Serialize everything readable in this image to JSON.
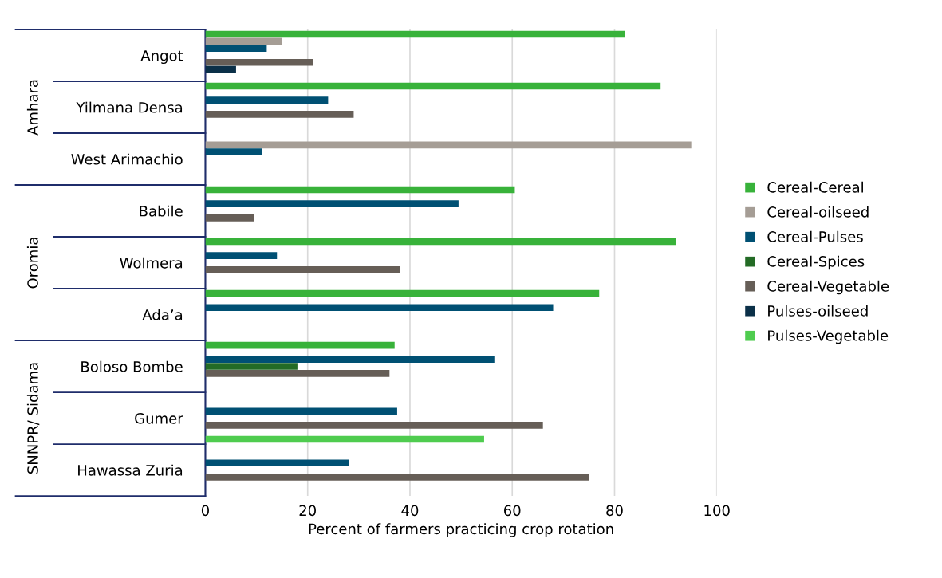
{
  "chart_data": {
    "type": "bar",
    "orientation": "horizontal",
    "xlabel": "Percent of farmers practicing crop rotation",
    "categories": [
      "Angot",
      "Yilmana Densa",
      "West Arimachio",
      "Babile",
      "Wolmera",
      "Ada’a",
      "Boloso Bombe",
      "Gumer",
      "Hawassa Zuria"
    ],
    "annotations": [
      "Amhara",
      "Oromia",
      "SNNPR/ Sidama"
    ],
    "series": [
      {
        "name": "Cereal-Cereal",
        "color": "#38b23a",
        "values": [
          82,
          89,
          null,
          60.5,
          92,
          77,
          37,
          null,
          null
        ]
      },
      {
        "name": "Cereal-oilseed",
        "color": "#a59d95",
        "values": [
          15,
          null,
          95,
          null,
          null,
          null,
          null,
          null,
          null
        ]
      },
      {
        "name": "Cereal-Pulses",
        "color": "#005073",
        "values": [
          12,
          24,
          11,
          49.5,
          14,
          68,
          56.5,
          37.5,
          28
        ]
      },
      {
        "name": "Cereal-Spices",
        "color": "#236b25",
        "values": [
          null,
          null,
          null,
          null,
          null,
          null,
          18,
          null,
          null
        ]
      },
      {
        "name": "Cereal-Vegetable",
        "color": "#665e57",
        "values": [
          21,
          29,
          null,
          9.5,
          38,
          null,
          36,
          66,
          75
        ]
      },
      {
        "name": "Pulses-oilseed",
        "color": "#0b3048",
        "values": [
          6,
          null,
          null,
          null,
          null,
          null,
          null,
          null,
          null
        ]
      },
      {
        "name": "Pulses-Vegetable",
        "color": "#4fcc4f",
        "values": [
          null,
          null,
          null,
          null,
          null,
          null,
          null,
          54.5,
          null
        ]
      }
    ],
    "xlim": [
      0,
      100
    ],
    "xticks": [
      0,
      20,
      40,
      60,
      80,
      100
    ],
    "grid": "x",
    "legend": "right"
  }
}
